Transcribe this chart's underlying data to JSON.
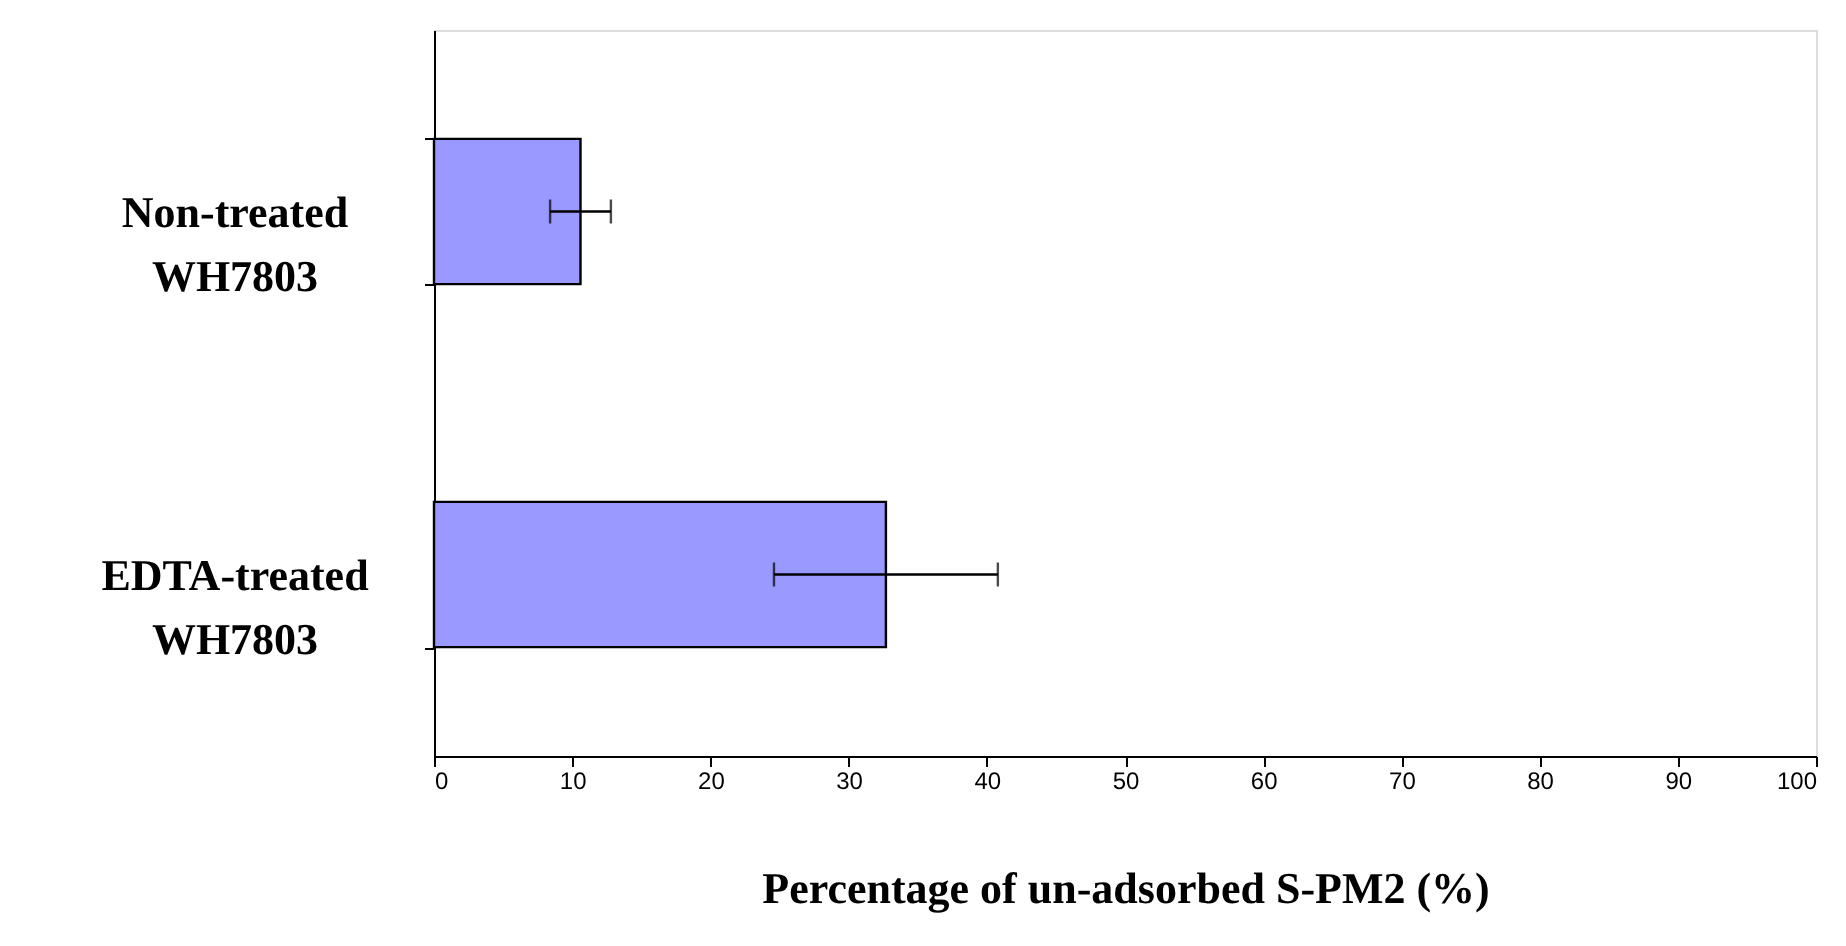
{
  "chart_data": {
    "type": "bar",
    "orientation": "horizontal",
    "categories": [
      "Non-treated WH7803",
      "EDTA-treated WH7803"
    ],
    "series": [
      {
        "color": "#9999ff",
        "values": [
          10.6,
          32.7
        ],
        "errors": [
          2.2,
          8.1
        ]
      }
    ],
    "xlabel": "Percentage of un-adsorbed S-PM2 (%)",
    "xlim": [
      0,
      100
    ],
    "xticks": [
      0,
      10,
      20,
      30,
      40,
      50,
      60,
      70,
      80,
      90,
      100
    ],
    "grid": false
  }
}
